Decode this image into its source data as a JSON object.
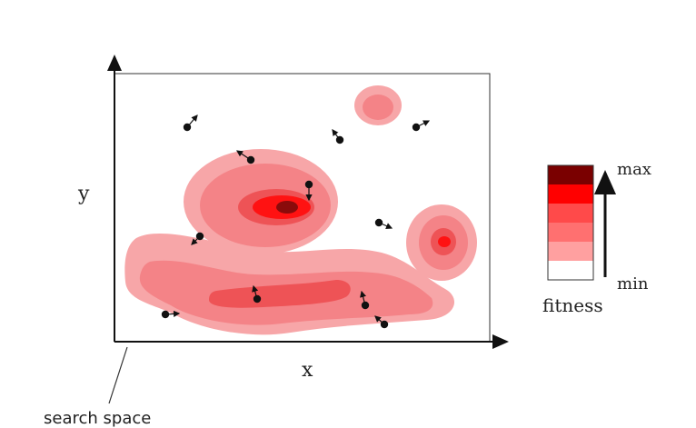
{
  "axes": {
    "x_label": "x",
    "y_label": "y"
  },
  "annotation": {
    "search_space": "search space"
  },
  "legend": {
    "max_label": "max",
    "min_label": "min",
    "title": "fitness",
    "levels": [
      "#7a0000",
      "#ff0000",
      "#ff4a4a",
      "#ff7070",
      "#ffa0a0",
      "#ffffff"
    ]
  },
  "colors": {
    "level1": "#f7a6a8",
    "level2": "#f48387",
    "level3": "#ee5356",
    "level4": "#ff1212",
    "level5": "#8a0b0b",
    "particle": "#111111"
  },
  "particle_count": 15
}
